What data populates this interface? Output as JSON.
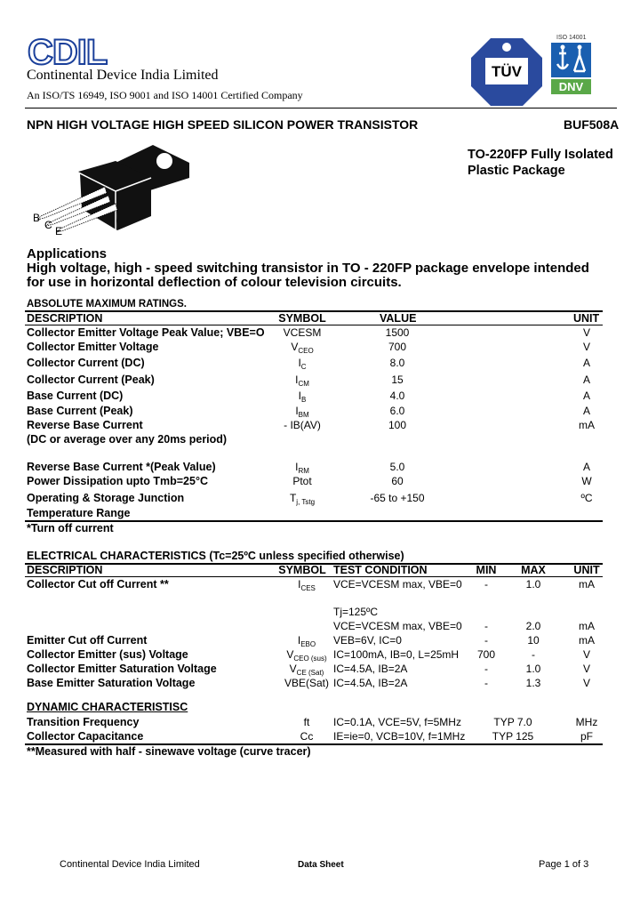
{
  "header": {
    "logo_text": "CDIL",
    "company_name": "Continental Device India Limited",
    "certification": "An ISO/TS 16949,  ISO 9001 and ISO 14001 Certified Company",
    "tuv_logo_text": "TÜV",
    "dnv_logo_text": "DNV",
    "dnv_iso_text": "ISO 14001",
    "brand_color": "#1a3f9a"
  },
  "title": {
    "description": "NPN HIGH VOLTAGE HIGH SPEED SILICON POWER TRANSISTOR",
    "part_number": "BUF508A"
  },
  "package": {
    "line1": "TO-220FP Fully Isolated",
    "line2": "Plastic Package",
    "pins": [
      "B",
      "C",
      "E"
    ]
  },
  "applications": {
    "heading": "Applications",
    "line1": "High voltage, high - speed switching transistor in TO - 220FP package envelope intended",
    "line2": "for use in horizontal deflection of colour television circuits."
  },
  "abs_max": {
    "title": "ABSOLUTE MAXIMUM RATINGS.",
    "headers": [
      "DESCRIPTION",
      "SYMBOL",
      "VALUE",
      "UNIT"
    ],
    "rows": [
      {
        "desc": "Collector Emitter Voltage Peak Value; VBE=O",
        "sym": "VCESM",
        "sub": "",
        "value": "1500",
        "unit": "V"
      },
      {
        "desc": "Collector Emitter Voltage",
        "sym": "V",
        "sub": "CEO",
        "value": "700",
        "unit": "V"
      },
      {
        "desc": "Collector Current (DC)",
        "sym": "I",
        "sub": "C",
        "value": "8.0",
        "unit": "A"
      },
      {
        "desc": "Collector Current (Peak)",
        "sym": "I",
        "sub": "CM",
        "value": "15",
        "unit": "A"
      },
      {
        "desc": "Base Current (DC)",
        "sym": "I",
        "sub": "B",
        "value": "4.0",
        "unit": "A"
      },
      {
        "desc": "Base Current (Peak)",
        "sym": "I",
        "sub": "BM",
        "value": "6.0",
        "unit": "A"
      },
      {
        "desc": "Reverse Base Current",
        "sym": "- IB(AV)",
        "sub": "",
        "value": "100",
        "unit": "mA"
      },
      {
        "desc": "(DC or average over any 20ms period)",
        "sym": "",
        "sub": "",
        "value": "",
        "unit": ""
      },
      {
        "desc": "Reverse Base Current *(Peak Value)",
        "sym": "I",
        "sub": "RM",
        "value": "5.0",
        "unit": "A"
      },
      {
        "desc": "Power Dissipation upto Tmb=25°C",
        "sym": "Ptot",
        "sub": "",
        "value": "60",
        "unit": "W"
      },
      {
        "desc": "Operating & Storage Junction",
        "sym": "T",
        "sub": "j, Tstg",
        "value": "-65 to +150",
        "unit": "ºC"
      },
      {
        "desc": "Temperature Range",
        "sym": "",
        "sub": "",
        "value": "",
        "unit": ""
      }
    ],
    "footnote": "*Turn off current"
  },
  "electrical": {
    "title": "ELECTRICAL CHARACTERISTICS (Tc=25ºC unless specified otherwise)",
    "headers": [
      "DESCRIPTION",
      "SYMBOL",
      "TEST CONDITION",
      "MIN",
      "MAX",
      "UNIT"
    ],
    "rows": [
      {
        "desc": "Collector Cut off Current **",
        "sym": "I",
        "sub": "CES",
        "cond": "VCE=VCESM max, VBE=0",
        "min": "-",
        "max": "1.0",
        "unit": "mA"
      },
      {
        "desc": "",
        "sym": "",
        "sub": "",
        "cond": "Tj=125ºC",
        "min": "",
        "max": "",
        "unit": ""
      },
      {
        "desc": "",
        "sym": "",
        "sub": "",
        "cond": "VCE=VCESM max, VBE=0",
        "min": "-",
        "max": "2.0",
        "unit": "mA"
      },
      {
        "desc": "Emitter Cut off Current",
        "sym": "I",
        "sub": "EBO",
        "cond": "VEB=6V, IC=0",
        "min": "-",
        "max": "10",
        "unit": "mA"
      },
      {
        "desc": "Collector Emitter (sus) Voltage",
        "sym": "V",
        "sub": "CEO (sus)",
        "cond": "IC=100mA, IB=0, L=25mH",
        "min": "700",
        "max": "-",
        "unit": "V"
      },
      {
        "desc": "Collector Emitter Saturation Voltage",
        "sym": "V",
        "sub": "CE (Sat)",
        "cond": "IC=4.5A, IB=2A",
        "min": "-",
        "max": "1.0",
        "unit": "V"
      },
      {
        "desc": "Base Emitter Saturation Voltage",
        "sym": "VBE(Sat)",
        "sub": "",
        "cond": "IC=4.5A, IB=2A",
        "min": "-",
        "max": "1.3",
        "unit": "V"
      }
    ],
    "dynamic_title": "DYNAMIC CHARACTERISTISC",
    "dynamic_rows": [
      {
        "desc": "Transition Frequency",
        "sym": "ft",
        "cond": "IC=0.1A,  VCE=5V, f=5MHz",
        "typ": "TYP 7.0",
        "unit": "MHz"
      },
      {
        "desc": "Collector Capacitance",
        "sym": "Cc",
        "cond": "IE=ie=0, VCB=10V,  f=1MHz",
        "typ": "TYP 125",
        "unit": "pF"
      }
    ],
    "footnote": "**Measured with half - sinewave voltage (curve tracer)"
  },
  "footer": {
    "company": "Continental Device India Limited",
    "doc_type": "Data Sheet",
    "page": "Page 1 of 3"
  }
}
